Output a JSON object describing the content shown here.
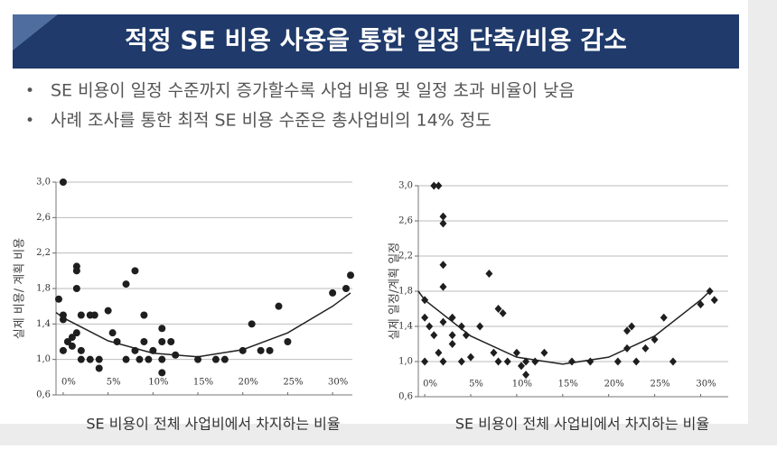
{
  "header": {
    "title": "적정 SE 비용 사용을 통한 일정 단축/비용 감소"
  },
  "bullets": [
    "SE 비용이 일정 수준까지 증가할수록 사업 비용 및 일정 초과 비율이 낮음",
    "사례 조사를 통한 최적 SE 비용 수준은 총사업비의 14% 정도"
  ],
  "chart_data": [
    {
      "type": "scatter",
      "marker": "circle",
      "color": "#1e1e1e",
      "grid": true,
      "ylabel": "실제 비용/ 계획 비용",
      "xlabel": "SE 비용이 전체 사업비에서 차지하는 비율",
      "xlim": [
        -0.8,
        32.2
      ],
      "ylim": [
        0.6,
        3.0
      ],
      "xticks": [
        {
          "value": 0,
          "label": "0%"
        },
        {
          "value": 5,
          "label": "5%"
        },
        {
          "value": 10,
          "label": "10%"
        },
        {
          "value": 15,
          "label": "15%"
        },
        {
          "value": 20,
          "label": "20%"
        },
        {
          "value": 25,
          "label": "25%"
        },
        {
          "value": 30,
          "label": "30%"
        }
      ],
      "yticks": [
        {
          "value": 0.6,
          "label": "0,6"
        },
        {
          "value": 1.0,
          "label": "1,0"
        },
        {
          "value": 1.4,
          "label": "1,4"
        },
        {
          "value": 1.8,
          "label": "1,8"
        },
        {
          "value": 2.2,
          "label": "2,2"
        },
        {
          "value": 2.6,
          "label": "2,6"
        },
        {
          "value": 3.0,
          "label": "3,0"
        }
      ],
      "x": [
        0,
        -0.5,
        0,
        0,
        0.5,
        0,
        1,
        1,
        1.5,
        1.5,
        1.5,
        2,
        1.5,
        2,
        2,
        3,
        3.5,
        3,
        4,
        4,
        5,
        5.5,
        6,
        7,
        7,
        8,
        8,
        8.5,
        9,
        9,
        9.5,
        10,
        11,
        11,
        11,
        11,
        12,
        12.5,
        15,
        17,
        18,
        20,
        21,
        22,
        23,
        24,
        25,
        30,
        31.5,
        32
      ],
      "values": [
        3.0,
        1.68,
        1.5,
        1.45,
        1.2,
        1.1,
        1.25,
        1.15,
        2.0,
        2.05,
        1.8,
        1.5,
        1.3,
        1.1,
        1.0,
        1.5,
        1.5,
        1.0,
        1.0,
        0.9,
        1.55,
        1.3,
        1.2,
        1.85,
        1.0,
        2.0,
        1.1,
        1.0,
        1.5,
        1.2,
        1.0,
        1.1,
        1.35,
        1.2,
        1.0,
        0.85,
        1.2,
        1.05,
        1.0,
        1.0,
        1.0,
        1.1,
        1.4,
        1.1,
        1.1,
        1.6,
        1.2,
        1.75,
        1.8,
        1.95
      ],
      "trendline": {
        "x": [
          -0.8,
          0,
          5,
          10,
          15,
          20,
          25,
          30,
          32
        ],
        "values": [
          1.53,
          1.47,
          1.21,
          1.07,
          1.03,
          1.11,
          1.3,
          1.6,
          1.75
        ]
      }
    },
    {
      "type": "scatter",
      "marker": "diamond",
      "color": "#1e1e1e",
      "grid": true,
      "ylabel": "실제 일정/계획 일정",
      "xlabel": "SE 비용이 전체 사업비에서 차지하는 비율",
      "xlim": [
        -0.7,
        33
      ],
      "ylim": [
        0.6,
        3.0
      ],
      "xticks": [
        {
          "value": 0,
          "label": "0%"
        },
        {
          "value": 5,
          "label": "5%"
        },
        {
          "value": 10,
          "label": "10%"
        },
        {
          "value": 15,
          "label": "15%"
        },
        {
          "value": 20,
          "label": "20%"
        },
        {
          "value": 25,
          "label": "25%"
        },
        {
          "value": 30,
          "label": "30%"
        }
      ],
      "yticks": [
        {
          "value": 0.6,
          "label": "0,6"
        },
        {
          "value": 1.0,
          "label": "1,0"
        },
        {
          "value": 1.4,
          "label": "1,4"
        },
        {
          "value": 1.8,
          "label": "1,8"
        },
        {
          "value": 2.2,
          "label": "2,2"
        },
        {
          "value": 2.6,
          "label": "2,6"
        },
        {
          "value": 3.0,
          "label": "3,0"
        }
      ],
      "x": [
        0,
        0,
        0,
        0.5,
        1,
        1.5,
        2,
        2,
        2,
        2,
        1,
        1.5,
        2,
        2,
        3,
        3,
        3,
        4,
        4,
        4.5,
        5,
        6,
        7,
        7.5,
        8,
        8.5,
        8,
        9,
        10,
        10.5,
        11,
        11,
        12,
        13,
        16,
        18,
        21,
        22,
        22,
        22.5,
        23,
        24,
        25,
        26,
        27,
        30,
        31,
        31.5
      ],
      "values": [
        1.0,
        1.5,
        1.7,
        1.4,
        3.0,
        3.0,
        2.65,
        2.57,
        2.1,
        1.85,
        1.3,
        1.1,
        1.0,
        1.45,
        1.5,
        1.3,
        1.2,
        1.4,
        1.0,
        1.3,
        1.05,
        1.4,
        2.0,
        1.1,
        1.6,
        1.55,
        1.0,
        1.0,
        1.1,
        0.95,
        0.85,
        1.0,
        1.0,
        1.1,
        1.0,
        1.0,
        1.0,
        1.15,
        1.35,
        1.4,
        1.0,
        1.15,
        1.25,
        1.5,
        1.0,
        1.65,
        1.8,
        1.7
      ],
      "trendline": {
        "x": [
          -0.7,
          0,
          5,
          10,
          15,
          20,
          25,
          30,
          31
        ],
        "values": [
          1.8,
          1.7,
          1.29,
          1.05,
          0.97,
          1.05,
          1.29,
          1.7,
          1.8
        ]
      }
    }
  ]
}
